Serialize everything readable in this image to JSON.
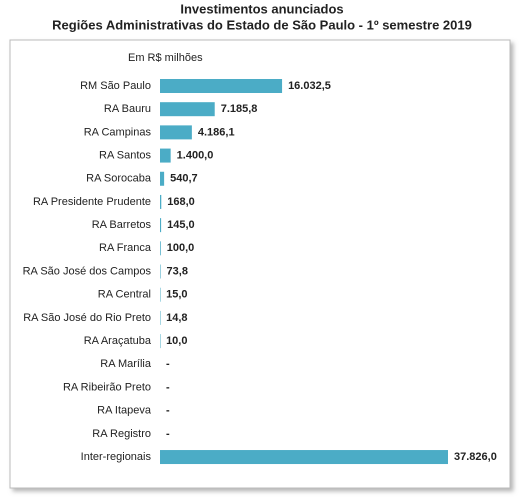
{
  "chart_data": {
    "type": "bar",
    "orientation": "horizontal",
    "title": "Investimentos anunciados",
    "subtitle": "Regiões Administrativas do Estado de São Paulo - 1º semestre 2019",
    "unit_label": "Em R$ milhões",
    "categories": [
      "RM São Paulo",
      "RA Bauru",
      "RA Campinas",
      "RA Santos",
      "RA Sorocaba",
      "RA Presidente Prudente",
      "RA Barretos",
      "RA Franca",
      "RA São José dos Campos",
      "RA Central",
      "RA São José do Rio Preto",
      "RA Araçatuba",
      "RA Marília",
      "RA Ribeirão Preto",
      "RA Itapeva",
      "RA Registro",
      "Inter-regionais"
    ],
    "values": [
      16032.5,
      7185.8,
      4186.1,
      1400.0,
      540.7,
      168.0,
      145.0,
      100.0,
      73.8,
      15.0,
      14.8,
      10.0,
      null,
      null,
      null,
      null,
      37826.0
    ],
    "value_labels": [
      "16.032,5",
      "7.185,8",
      "4.186,1",
      "1.400,0",
      "540,7",
      "168,0",
      "145,0",
      "100,0",
      "73,8",
      "15,0",
      "14,8",
      "10,0",
      "-",
      "-",
      "-",
      "-",
      "37.826,0"
    ],
    "color": "#4bacc6",
    "xlim": [
      0,
      37826
    ]
  }
}
